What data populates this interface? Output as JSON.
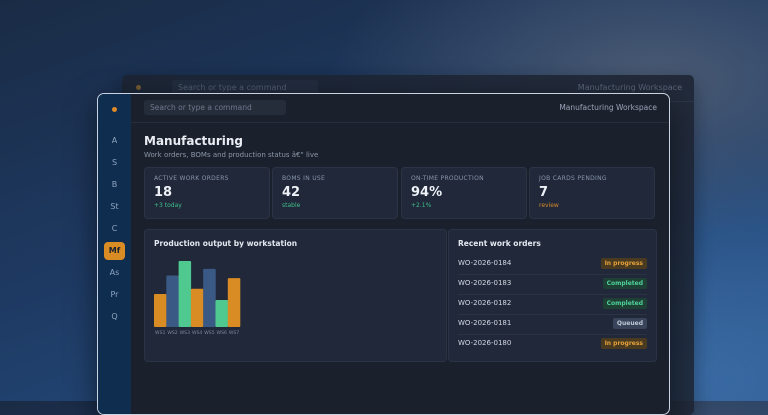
{
  "back_window": {
    "search_placeholder": "Search or type a command",
    "title": "Manufacturing Workspace"
  },
  "topbar": {
    "search_placeholder": "Search or type a command",
    "workspace_title": "Manufacturing Workspace"
  },
  "sidebar": {
    "items": [
      {
        "label": "A"
      },
      {
        "label": "S"
      },
      {
        "label": "B"
      },
      {
        "label": "St"
      },
      {
        "label": "C"
      },
      {
        "label": "Mf",
        "active": true
      },
      {
        "label": "As"
      },
      {
        "label": "Pr"
      },
      {
        "label": "Q"
      }
    ]
  },
  "page": {
    "title": "Manufacturing",
    "subtitle": "Work orders, BOMs and production status â€\" live"
  },
  "stats": [
    {
      "label": "ACTIVE WORK ORDERS",
      "value": "18",
      "note": "+3 today",
      "note_color": "#3fbf8a"
    },
    {
      "label": "BOMS IN USE",
      "value": "42",
      "note": "stable",
      "note_color": "#3fbf8a"
    },
    {
      "label": "ON-TIME PRODUCTION",
      "value": "94%",
      "note": "+2.1%",
      "note_color": "#3fbf8a"
    },
    {
      "label": "JOB CARDS PENDING",
      "value": "7",
      "note": "review",
      "note_color": "#d9892a"
    }
  ],
  "chart_panel": {
    "title": "Production output by workstation"
  },
  "chart_data": {
    "type": "bar",
    "categories": [
      "WS1",
      "WS2",
      "WS3",
      "WS4",
      "WS5",
      "WS6",
      "WS7"
    ],
    "values": [
      50,
      78,
      100,
      58,
      88,
      41,
      74
    ],
    "colors": [
      "#d98c24",
      "#3a5a85",
      "#4fc990",
      "#d98c24",
      "#3a5a85",
      "#4fc990",
      "#d98c24"
    ],
    "title": "Production output by workstation",
    "ylim": [
      0,
      100
    ],
    "grid": false
  },
  "orders_panel": {
    "title": "Recent work orders",
    "rows": [
      {
        "id": "WO-2026-0184",
        "status": "In progress",
        "fg": "#e8a23a",
        "bg": "#4a3a1f"
      },
      {
        "id": "WO-2026-0183",
        "status": "Completed",
        "fg": "#4fd39a",
        "bg": "#1e4035"
      },
      {
        "id": "WO-2026-0182",
        "status": "Completed",
        "fg": "#4fd39a",
        "bg": "#1e4035"
      },
      {
        "id": "WO-2026-0181",
        "status": "Queued",
        "fg": "#c2cad8",
        "bg": "#39435a"
      },
      {
        "id": "WO-2026-0180",
        "status": "In progress",
        "fg": "#e8a23a",
        "bg": "#4a3a1f"
      }
    ]
  }
}
